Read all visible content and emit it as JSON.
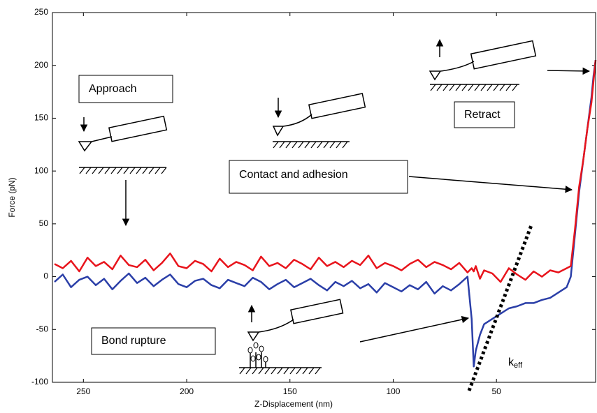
{
  "chart_data": {
    "type": "line",
    "xlabel": "Z-Displacement (nm)",
    "ylabel": "Force (pN)",
    "x": [
      264,
      260,
      256,
      252,
      248,
      244,
      240,
      236,
      232,
      228,
      224,
      220,
      216,
      212,
      208,
      204,
      200,
      196,
      192,
      188,
      184,
      180,
      176,
      172,
      168,
      164,
      160,
      156,
      152,
      148,
      144,
      140,
      136,
      132,
      128,
      124,
      120,
      116,
      112,
      108,
      104,
      100,
      96,
      92,
      88,
      84,
      80,
      76,
      72,
      68,
      64,
      62,
      61,
      60,
      58,
      56,
      52,
      48,
      44,
      40,
      36,
      32,
      28,
      24,
      20,
      16,
      14,
      12,
      10,
      8,
      6,
      4,
      3,
      2
    ],
    "series": [
      {
        "color": "#2b3fa8",
        "values": [
          -5,
          2,
          -10,
          -3,
          0,
          -8,
          -2,
          -12,
          -4,
          3,
          -6,
          -1,
          -9,
          -3,
          2,
          -7,
          -10,
          -4,
          -2,
          -8,
          -11,
          -3,
          -6,
          -9,
          -1,
          -5,
          -12,
          -7,
          -3,
          -10,
          -6,
          -2,
          -8,
          -13,
          -5,
          -9,
          -4,
          -11,
          -7,
          -15,
          -6,
          -10,
          -14,
          -8,
          -12,
          -5,
          -16,
          -9,
          -13,
          -7,
          0,
          -40,
          -85,
          -70,
          -55,
          -45,
          -40,
          -35,
          -30,
          -28,
          -25,
          -25,
          -22,
          -20,
          -15,
          -10,
          0,
          40,
          80,
          110,
          140,
          170,
          190,
          205
        ]
      },
      {
        "color": "#e8141c",
        "values": [
          12,
          8,
          15,
          5,
          18,
          10,
          14,
          7,
          20,
          11,
          9,
          16,
          6,
          13,
          22,
          10,
          8,
          15,
          12,
          5,
          17,
          9,
          14,
          11,
          6,
          19,
          10,
          13,
          8,
          16,
          12,
          7,
          18,
          10,
          14,
          9,
          15,
          11,
          20,
          8,
          13,
          10,
          6,
          12,
          16,
          9,
          14,
          11,
          7,
          13,
          4,
          8,
          5,
          10,
          -2,
          6,
          3,
          -5,
          8,
          2,
          -3,
          5,
          0,
          6,
          4,
          8,
          10,
          45,
          85,
          110,
          140,
          165,
          185,
          205
        ]
      }
    ],
    "xlim": [
      265,
      2
    ],
    "ylim": [
      -100,
      250
    ],
    "xticks": [
      250,
      200,
      150,
      100,
      50
    ],
    "yticks": [
      -100,
      -50,
      0,
      50,
      100,
      150,
      200,
      250
    ],
    "annotations": [
      "Approach",
      "Retract",
      "Contact and adhesion",
      "Bond rupture"
    ],
    "keff_label": {
      "main": "k",
      "sub": "eff"
    }
  }
}
